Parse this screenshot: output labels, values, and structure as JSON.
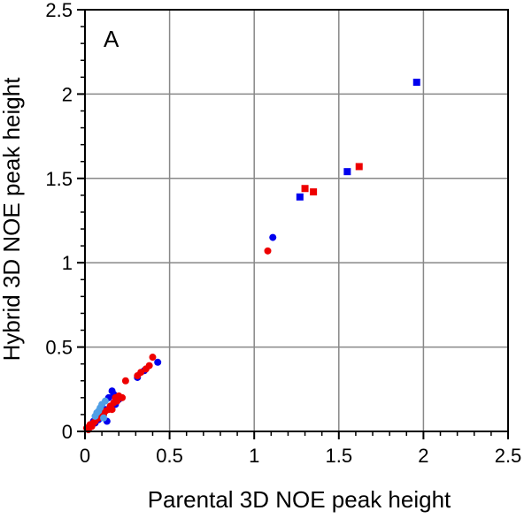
{
  "chart_data": {
    "type": "scatter",
    "panel_label": "A",
    "title": "",
    "xlabel": "Parental 3D NOE peak height",
    "ylabel": "Hybrid 3D NOE peak height",
    "xlim": [
      0,
      2.5
    ],
    "ylim": [
      0,
      2.5
    ],
    "x_ticks": [
      0,
      0.5,
      1,
      1.5,
      2,
      2.5
    ],
    "y_ticks": [
      0,
      0.5,
      1,
      1.5,
      2,
      2.5
    ],
    "x_tick_labels": [
      "0",
      "0.5",
      "1",
      "1.5",
      "2",
      "2.5"
    ],
    "y_tick_labels": [
      "0",
      "0.5",
      "1",
      "1.5",
      "2",
      "2.5"
    ],
    "grid": true,
    "series": [
      {
        "color": "#0000ee",
        "marker": "circle",
        "points": [
          [
            1.11,
            1.15
          ],
          [
            0.43,
            0.41
          ],
          [
            0.35,
            0.36
          ],
          [
            0.16,
            0.24
          ],
          [
            0.17,
            0.22
          ],
          [
            0.14,
            0.2
          ],
          [
            0.12,
            0.13
          ],
          [
            0.1,
            0.09
          ],
          [
            0.08,
            0.07
          ],
          [
            0.06,
            0.05
          ],
          [
            0.04,
            0.04
          ],
          [
            0.02,
            0.02
          ],
          [
            0.13,
            0.06
          ],
          [
            0.18,
            0.16
          ],
          [
            0.2,
            0.19
          ],
          [
            0.05,
            0.06
          ],
          [
            0.31,
            0.32
          ]
        ]
      },
      {
        "color": "#ee0000",
        "marker": "circle",
        "points": [
          [
            1.08,
            1.07
          ],
          [
            0.4,
            0.44
          ],
          [
            0.38,
            0.39
          ],
          [
            0.36,
            0.37
          ],
          [
            0.33,
            0.35
          ],
          [
            0.31,
            0.33
          ],
          [
            0.24,
            0.3
          ],
          [
            0.22,
            0.2
          ],
          [
            0.2,
            0.21
          ],
          [
            0.19,
            0.18
          ],
          [
            0.17,
            0.17
          ],
          [
            0.15,
            0.15
          ],
          [
            0.14,
            0.13
          ],
          [
            0.12,
            0.12
          ],
          [
            0.11,
            0.1
          ],
          [
            0.1,
            0.11
          ],
          [
            0.09,
            0.09
          ],
          [
            0.08,
            0.08
          ],
          [
            0.06,
            0.06
          ],
          [
            0.05,
            0.05
          ],
          [
            0.04,
            0.03
          ],
          [
            0.03,
            0.04
          ],
          [
            0.02,
            0.01
          ],
          [
            0.01,
            0.02
          ],
          [
            0.18,
            0.2
          ],
          [
            0.16,
            0.13
          ]
        ]
      },
      {
        "color": "#4f9fe6",
        "marker": "circle",
        "points": [
          [
            0.12,
            0.18
          ],
          [
            0.1,
            0.16
          ],
          [
            0.09,
            0.14
          ],
          [
            0.08,
            0.12
          ],
          [
            0.07,
            0.11
          ],
          [
            0.06,
            0.09
          ],
          [
            0.11,
            0.08
          ]
        ]
      },
      {
        "color": "#0000ee",
        "marker": "square",
        "points": [
          [
            1.96,
            2.07
          ],
          [
            1.55,
            1.54
          ],
          [
            1.27,
            1.39
          ]
        ]
      },
      {
        "color": "#ee0000",
        "marker": "square",
        "points": [
          [
            1.62,
            1.57
          ],
          [
            1.35,
            1.42
          ],
          [
            1.3,
            1.44
          ]
        ]
      }
    ]
  }
}
